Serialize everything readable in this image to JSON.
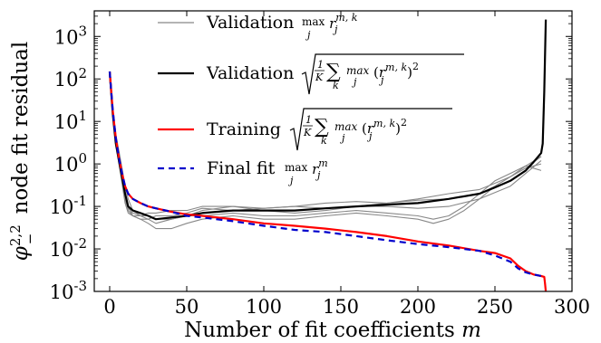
{
  "chart_data": {
    "type": "line",
    "title": "",
    "xlabel": "Number of fit coefficients m",
    "ylabel": "φ^{2,2}_− node fit residual",
    "xlim": [
      -10,
      300
    ],
    "ylim": [
      0.001,
      4000
    ],
    "yscale": "log",
    "grid": false,
    "legend_placement": "top-center",
    "xticks": [
      0,
      50,
      100,
      150,
      200,
      250,
      300
    ],
    "xtick_labels": [
      "0",
      "50",
      "100",
      "150",
      "200",
      "250",
      "300"
    ],
    "ytick_labels": [
      "10-3",
      "10-2",
      "10-1",
      "100",
      "101",
      "102",
      "103"
    ],
    "legend": [
      {
        "label": "Validation",
        "math": "max_j r_j^{m,k}",
        "color": "#888888",
        "style": "solid"
      },
      {
        "label": "Validation",
        "math": "sqrt(1/K Σ_k max_j (r_j^{m,k})^2)",
        "color": "#000000",
        "style": "solid"
      },
      {
        "label": "Training",
        "math": "sqrt(1/K Σ_k max_j (r_j^{m,k})^2)",
        "color": "#ff0000",
        "style": "solid"
      },
      {
        "label": "Final fit",
        "math": "max_j r_j^m",
        "color": "#0000cc",
        "style": "dashed"
      }
    ],
    "series": [
      {
        "key": "val_k1",
        "color": "#888888",
        "x": [
          0,
          2,
          4,
          6,
          8,
          10,
          12,
          15,
          20,
          25,
          30,
          40,
          50,
          60,
          80,
          100,
          120,
          140,
          160,
          180,
          200,
          220,
          240,
          260,
          270,
          280
        ],
        "y": [
          150,
          20,
          5,
          2,
          0.8,
          0.3,
          0.15,
          0.08,
          0.06,
          0.05,
          0.04,
          0.05,
          0.06,
          0.08,
          0.1,
          0.08,
          0.07,
          0.08,
          0.1,
          0.1,
          0.09,
          0.1,
          0.15,
          0.3,
          0.6,
          1.2
        ]
      },
      {
        "key": "val_k2",
        "color": "#888888",
        "x": [
          0,
          2,
          4,
          6,
          8,
          10,
          12,
          15,
          20,
          25,
          30,
          40,
          50,
          60,
          80,
          100,
          120,
          140,
          160,
          180,
          200,
          210,
          220,
          230,
          240,
          250,
          260,
          270,
          280
        ],
        "y": [
          150,
          18,
          4,
          1.5,
          0.5,
          0.2,
          0.1,
          0.06,
          0.05,
          0.04,
          0.03,
          0.03,
          0.04,
          0.05,
          0.06,
          0.05,
          0.05,
          0.06,
          0.07,
          0.06,
          0.05,
          0.04,
          0.05,
          0.08,
          0.15,
          0.3,
          0.5,
          0.8,
          1.5
        ]
      },
      {
        "key": "val_k3",
        "color": "#888888",
        "x": [
          0,
          2,
          4,
          6,
          8,
          10,
          12,
          15,
          20,
          25,
          30,
          40,
          50,
          60,
          80,
          100,
          120,
          140,
          160,
          180,
          200,
          220,
          240,
          250,
          260,
          270,
          280
        ],
        "y": [
          150,
          16,
          3.5,
          1.2,
          0.4,
          0.15,
          0.08,
          0.06,
          0.05,
          0.05,
          0.06,
          0.06,
          0.07,
          0.09,
          0.08,
          0.09,
          0.1,
          0.12,
          0.13,
          0.12,
          0.14,
          0.15,
          0.2,
          0.3,
          0.5,
          0.9,
          1.5
        ]
      },
      {
        "key": "val_k4",
        "color": "#888888",
        "x": [
          0,
          2,
          4,
          6,
          8,
          10,
          12,
          15,
          20,
          25,
          30,
          40,
          50,
          60,
          80,
          100,
          120,
          140,
          160,
          180,
          200,
          220,
          240,
          250,
          260,
          270,
          280
        ],
        "y": [
          150,
          15,
          3,
          1.0,
          0.35,
          0.12,
          0.07,
          0.06,
          0.06,
          0.07,
          0.07,
          0.08,
          0.08,
          0.1,
          0.1,
          0.09,
          0.1,
          0.09,
          0.1,
          0.12,
          0.15,
          0.2,
          0.25,
          0.35,
          0.5,
          0.8,
          1.0
        ]
      },
      {
        "key": "val_k5",
        "color": "#888888",
        "x": [
          0,
          2,
          4,
          6,
          8,
          10,
          12,
          15,
          20,
          25,
          30,
          40,
          50,
          60,
          80,
          100,
          120,
          140,
          160,
          180,
          200,
          210,
          220,
          230,
          240,
          250,
          260,
          270,
          280
        ],
        "y": [
          150,
          17,
          3.8,
          1.3,
          0.45,
          0.14,
          0.09,
          0.07,
          0.06,
          0.06,
          0.05,
          0.05,
          0.06,
          0.06,
          0.07,
          0.06,
          0.06,
          0.07,
          0.08,
          0.07,
          0.06,
          0.05,
          0.06,
          0.1,
          0.2,
          0.4,
          0.6,
          0.9,
          0.7
        ]
      },
      {
        "key": "val_rms",
        "color": "#000000",
        "x": [
          0,
          2,
          4,
          6,
          8,
          10,
          12,
          15,
          20,
          25,
          30,
          40,
          50,
          60,
          80,
          100,
          120,
          140,
          160,
          180,
          200,
          220,
          240,
          250,
          260,
          270,
          275,
          280,
          281,
          282,
          283
        ],
        "y": [
          150,
          15,
          3,
          1.2,
          0.5,
          0.2,
          0.1,
          0.08,
          0.07,
          0.06,
          0.05,
          0.055,
          0.06,
          0.07,
          0.08,
          0.08,
          0.08,
          0.09,
          0.1,
          0.11,
          0.12,
          0.15,
          0.2,
          0.28,
          0.4,
          0.7,
          1.1,
          1.8,
          3,
          50,
          2500
        ]
      },
      {
        "key": "train_rms",
        "color": "#ff0000",
        "x": [
          0,
          2,
          4,
          6,
          8,
          10,
          12,
          15,
          20,
          25,
          30,
          40,
          50,
          60,
          80,
          100,
          120,
          140,
          160,
          180,
          200,
          220,
          240,
          250,
          260,
          265,
          270,
          275,
          280,
          282,
          282.5,
          283
        ],
        "y": [
          150,
          18,
          4,
          1.4,
          0.6,
          0.3,
          0.2,
          0.15,
          0.12,
          0.1,
          0.09,
          0.075,
          0.065,
          0.06,
          0.05,
          0.04,
          0.035,
          0.03,
          0.025,
          0.02,
          0.015,
          0.012,
          0.009,
          0.008,
          0.006,
          0.004,
          0.003,
          0.0025,
          0.0023,
          0.0022,
          0.0015,
          0.001
        ]
      },
      {
        "key": "final_fit",
        "color": "#0000cc",
        "x": [
          0,
          2,
          4,
          6,
          8,
          10,
          12,
          15,
          20,
          25,
          30,
          40,
          50,
          60,
          80,
          100,
          120,
          140,
          160,
          180,
          200,
          220,
          240,
          250,
          260,
          265,
          270,
          275,
          280,
          282
        ],
        "y": [
          150,
          18,
          4,
          1.4,
          0.6,
          0.3,
          0.2,
          0.15,
          0.12,
          0.1,
          0.09,
          0.075,
          0.06,
          0.055,
          0.045,
          0.035,
          0.028,
          0.025,
          0.02,
          0.016,
          0.013,
          0.011,
          0.009,
          0.007,
          0.005,
          0.0035,
          0.0028,
          0.0025,
          0.0023,
          0.0022
        ]
      }
    ]
  }
}
